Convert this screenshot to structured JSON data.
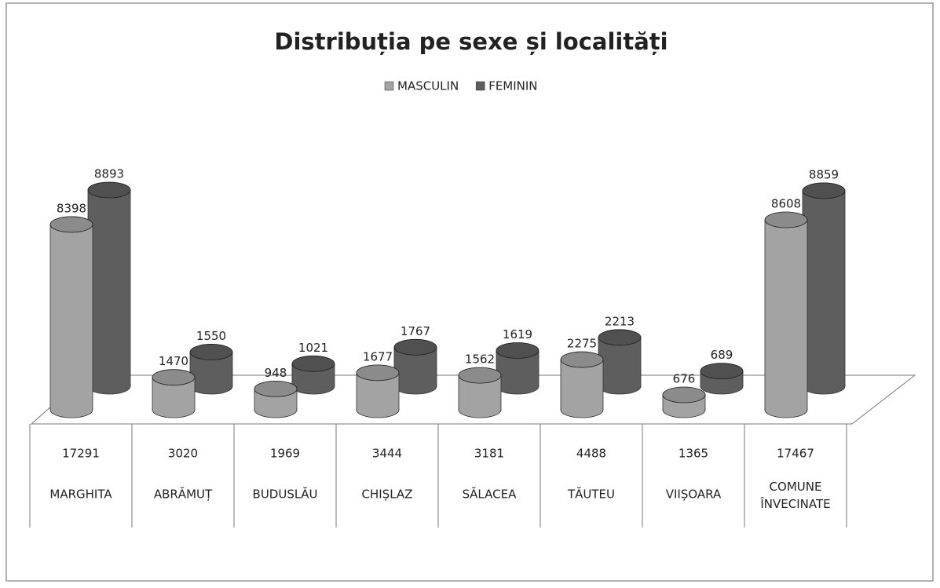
{
  "chart_data": {
    "type": "bar3d",
    "title": "Distribuția pe sexe și localități",
    "categories": [
      "MARGHITA",
      "ABRĂMUȚ",
      "BUDUSLĂU",
      "CHIȘLAZ",
      "SĂLACEA",
      "TĂUTEU",
      "VIIȘOARA",
      "COMUNE ÎNVECINATE"
    ],
    "totals": [
      17291,
      3020,
      1969,
      3444,
      3181,
      4488,
      1365,
      17467
    ],
    "series": [
      {
        "name": "MASCULIN",
        "color": "#a3a3a3",
        "values": [
          8398,
          1470,
          948,
          1677,
          1562,
          2275,
          676,
          8608
        ]
      },
      {
        "name": "FEMININ",
        "color": "#5e5e5e",
        "values": [
          8893,
          1550,
          1021,
          1767,
          1619,
          2213,
          689,
          8859
        ]
      }
    ],
    "legend": "top"
  }
}
